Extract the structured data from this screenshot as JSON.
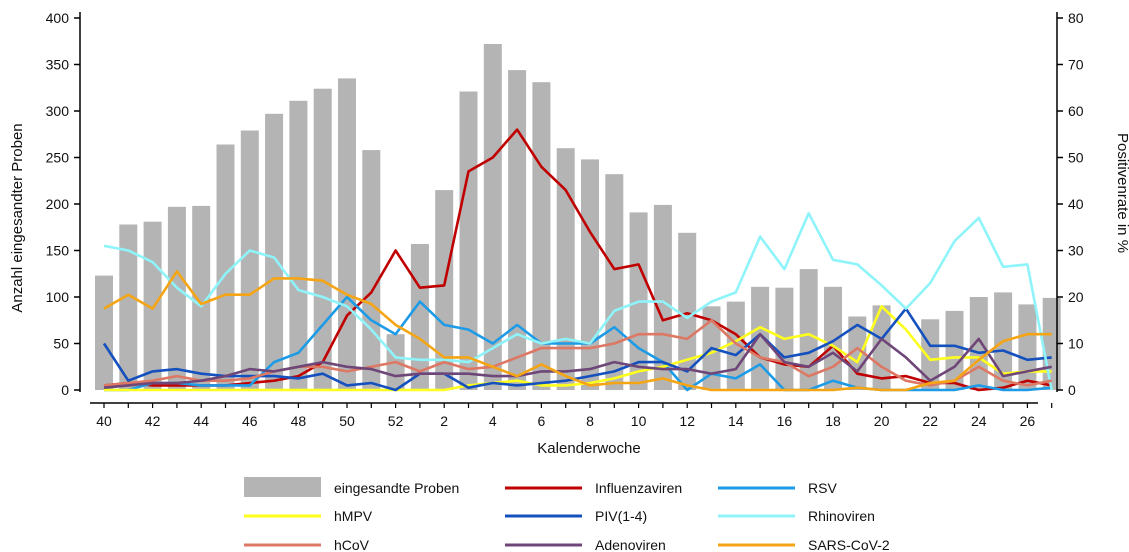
{
  "chart_data": {
    "type": "bar",
    "xlabel": "Kalenderwoche",
    "ylabel_left": "Anzahl eingesandter Proben",
    "ylabel_right": "Positivenrate in %",
    "ylim_left": [
      0,
      400
    ],
    "ylim_right": [
      0,
      80
    ],
    "yticks_left": [
      "0",
      "50",
      "100",
      "150",
      "200",
      "250",
      "300",
      "350",
      "400"
    ],
    "yticks_right": [
      "0",
      "10",
      "20",
      "30",
      "40",
      "50",
      "60",
      "70",
      "80"
    ],
    "categories": [
      "40",
      "41",
      "42",
      "43",
      "44",
      "45",
      "46",
      "47",
      "48",
      "49",
      "50",
      "51",
      "52",
      "1",
      "2",
      "3",
      "4",
      "5",
      "6",
      "7",
      "8",
      "9",
      "10",
      "11",
      "12",
      "13",
      "14",
      "15",
      "16",
      "17",
      "18",
      "19",
      "20",
      "21",
      "22",
      "23",
      "24",
      "25",
      "26",
      "27"
    ],
    "xtick_labels": [
      "40",
      "42",
      "44",
      "46",
      "48",
      "50",
      "52",
      "2",
      "4",
      "6",
      "8",
      "10",
      "12",
      "14",
      "16",
      "18",
      "20",
      "22",
      "24",
      "26"
    ],
    "legend_position": "bottom",
    "bar_series": {
      "name": "eingesandte Proben",
      "color": "#b4b4b4",
      "values": [
        123,
        178,
        181,
        197,
        198,
        264,
        279,
        297,
        311,
        324,
        335,
        258,
        60,
        157,
        215,
        321,
        372,
        344,
        331,
        260,
        248,
        232,
        191,
        199,
        169,
        90,
        95,
        111,
        110,
        130,
        111,
        79,
        91,
        0,
        76,
        85,
        100,
        105,
        92,
        99
      ]
    },
    "line_series": [
      {
        "name": "Influenzaviren",
        "color": "#c00000",
        "values": [
          1,
          1.5,
          1,
          1,
          1,
          1,
          1.5,
          2,
          3,
          6,
          16,
          21,
          30,
          22,
          22.5,
          47,
          50,
          56,
          48,
          43,
          34,
          26,
          27,
          15,
          16.5,
          15,
          12,
          7,
          5.5,
          5,
          9.5,
          3.5,
          2.5,
          3,
          1.5,
          1.5,
          0,
          0.5,
          2,
          1
        ]
      },
      {
        "name": "RSV",
        "color": "#1e9be6",
        "values": [
          0,
          0,
          1.5,
          1.5,
          1,
          1,
          1,
          6,
          8,
          14,
          20,
          15,
          12,
          19,
          14,
          13,
          10,
          14,
          10,
          10,
          10,
          13.5,
          9,
          6,
          0,
          3.5,
          2.5,
          5.5,
          0,
          0,
          2,
          0.5,
          0,
          0,
          0,
          0,
          1,
          0,
          0,
          0.5
        ]
      },
      {
        "name": "hMPV",
        "color": "#ffff1e",
        "values": [
          0,
          0,
          0,
          0,
          0,
          0,
          0,
          0,
          0,
          0,
          0,
          0,
          0,
          0,
          0,
          1,
          1.5,
          2,
          1,
          1,
          1.5,
          2.5,
          4,
          5,
          6.5,
          8,
          10.5,
          13.5,
          11,
          12,
          9.5,
          6,
          18,
          13,
          6.5,
          7,
          7,
          3.5,
          4,
          4
        ]
      },
      {
        "name": "PIV(1-4)",
        "color": "#1450be",
        "values": [
          10,
          2,
          4,
          4.5,
          3.5,
          3,
          3,
          3,
          2.5,
          3.5,
          1,
          1.5,
          0,
          3.5,
          3.5,
          0.5,
          1.5,
          1,
          1.5,
          2,
          3,
          4,
          6,
          6,
          4,
          9,
          7.5,
          12,
          7,
          8,
          10.5,
          14,
          11,
          17.5,
          9.5,
          9.5,
          8,
          8.5,
          6.5,
          7
        ]
      },
      {
        "name": "Rhinoviren",
        "color": "#8ef4fa",
        "values": [
          31,
          30,
          27.5,
          22,
          18,
          25,
          30,
          28.5,
          21.5,
          20,
          18,
          13,
          7,
          6.5,
          6.5,
          6,
          9,
          12,
          10,
          11,
          10,
          17,
          19,
          19,
          15.5,
          19,
          21,
          33,
          26,
          38,
          28,
          27,
          22.5,
          17.5,
          23,
          32,
          37,
          26.5,
          27,
          0
        ]
      },
      {
        "name": "hCoV",
        "color": "#dc7864",
        "values": [
          1,
          1.5,
          2,
          3,
          2,
          2,
          2.5,
          4,
          5,
          5,
          4,
          5,
          6,
          4,
          6,
          4.5,
          5,
          7,
          9,
          9,
          9,
          10,
          12,
          12,
          11,
          15,
          10,
          7,
          6,
          3,
          5,
          9,
          5,
          2,
          1,
          2,
          5,
          2,
          1,
          2
        ]
      },
      {
        "name": "Adenoviren",
        "color": "#6e4678",
        "values": [
          0.5,
          1,
          1.5,
          1.5,
          2,
          3,
          4.5,
          4,
          5,
          6,
          5,
          4.5,
          3,
          3.5,
          3.5,
          3.5,
          3,
          3,
          4,
          4,
          4.5,
          6,
          5,
          4.5,
          4.5,
          3.5,
          4.5,
          12,
          6,
          5,
          8,
          4,
          11,
          7,
          2,
          5,
          11,
          3,
          4,
          5
        ]
      },
      {
        "name": "SARS-CoV-2",
        "color": "#f5a514",
        "values": [
          17.5,
          20.5,
          17.5,
          25.5,
          18.5,
          20.5,
          20.5,
          24,
          24,
          23.5,
          20.5,
          18.5,
          14,
          11,
          7,
          7,
          5,
          3,
          5.5,
          3,
          1,
          1.5,
          1.5,
          2.5,
          1,
          0,
          0,
          0,
          0,
          0,
          0,
          0.5,
          0,
          0,
          1.5,
          2,
          6.5,
          10.5,
          12,
          12
        ]
      }
    ],
    "legend_entries": [
      "eingesandte Proben",
      "Influenzaviren",
      "RSV",
      "hMPV",
      "PIV(1-4)",
      "Rhinoviren",
      "hCoV",
      "Adenoviren",
      "SARS-CoV-2"
    ]
  }
}
